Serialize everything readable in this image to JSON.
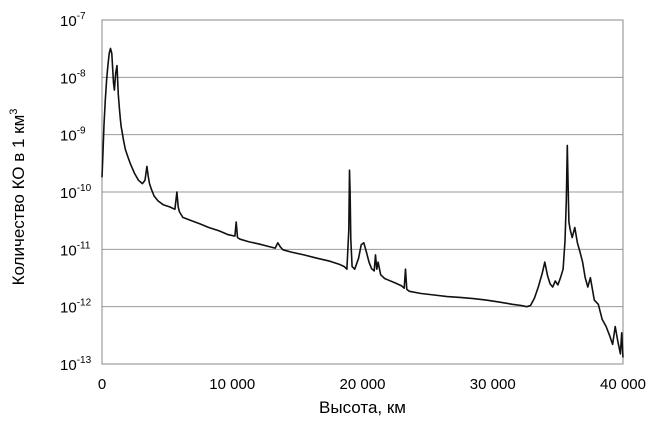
{
  "chart_data": {
    "type": "line",
    "xlabel": "Высота, км",
    "ylabel": "Количество КО в 1 км",
    "ylabel_superscript": "3",
    "xlim": [
      0,
      40000
    ],
    "ylim": [
      1e-13,
      1e-07
    ],
    "yscale": "log",
    "grid": "horizontal",
    "x_ticks": [
      {
        "value": 0,
        "label": "0"
      },
      {
        "value": 10000,
        "label": "10 000"
      },
      {
        "value": 20000,
        "label": "20 000"
      },
      {
        "value": 30000,
        "label": "30 000"
      },
      {
        "value": 40000,
        "label": "40 000"
      }
    ],
    "y_ticks": [
      {
        "value": 1e-07,
        "base": "10",
        "exp": "-7"
      },
      {
        "value": 1e-08,
        "base": "10",
        "exp": "-8"
      },
      {
        "value": 1e-09,
        "base": "10",
        "exp": "-9"
      },
      {
        "value": 1e-10,
        "base": "10",
        "exp": "-10"
      },
      {
        "value": 1e-11,
        "base": "10",
        "exp": "-11"
      },
      {
        "value": 1e-12,
        "base": "10",
        "exp": "-12"
      },
      {
        "value": 1e-13,
        "base": "10",
        "exp": "-13"
      }
    ],
    "series": [
      {
        "line_color": "#111111",
        "x": [
          0,
          80,
          150,
          250,
          350,
          450,
          550,
          650,
          750,
          820,
          880,
          950,
          1050,
          1150,
          1250,
          1330,
          1400,
          1470,
          1550,
          1650,
          1800,
          2000,
          2200,
          2500,
          2800,
          3100,
          3300,
          3450,
          3550,
          3650,
          3800,
          4000,
          4300,
          4700,
          5200,
          5600,
          5750,
          5850,
          5950,
          6200,
          6800,
          7500,
          8200,
          9000,
          9700,
          10200,
          10300,
          10400,
          10600,
          11300,
          12000,
          12800,
          13300,
          13500,
          13700,
          13900,
          14500,
          15500,
          16500,
          17500,
          18200,
          18600,
          18800,
          18950,
          19000,
          19050,
          19100,
          19200,
          19400,
          19700,
          19900,
          20100,
          20300,
          20500,
          20700,
          20900,
          21000,
          21100,
          21200,
          21400,
          21700,
          22000,
          22500,
          23000,
          23200,
          23300,
          23400,
          23600,
          24500,
          25500,
          26500,
          27500,
          28500,
          29500,
          30500,
          31500,
          32200,
          32600,
          32900,
          33200,
          33500,
          33800,
          34000,
          34200,
          34400,
          34600,
          34800,
          35000,
          35200,
          35400,
          35550,
          35650,
          35720,
          35780,
          35850,
          35950,
          36100,
          36300,
          36500,
          36700,
          36900,
          37100,
          37300,
          37500,
          37800,
          38100,
          38400,
          38700,
          39000,
          39200,
          39400,
          39600,
          39800,
          39900,
          40000
        ],
        "y": [
          1.8e-10,
          5e-10,
          1.5e-09,
          4e-09,
          9e-09,
          1.6e-08,
          2.6e-08,
          3.2e-08,
          2.6e-08,
          1.4e-08,
          8e-09,
          6e-09,
          1.2e-08,
          1.6e-08,
          5e-09,
          3e-09,
          2e-09,
          1.4e-09,
          1.1e-09,
          8e-10,
          5.5e-10,
          4e-10,
          3e-10,
          2.1e-10,
          1.6e-10,
          1.4e-10,
          1.6e-10,
          2.8e-10,
          1.9e-10,
          1.4e-10,
          1.1e-10,
          8.5e-11,
          7e-11,
          6e-11,
          5.5e-11,
          5e-11,
          1e-10,
          5.5e-11,
          4.5e-11,
          3.6e-11,
          3.2e-11,
          2.8e-11,
          2.4e-11,
          2.1e-11,
          1.8e-11,
          1.7e-11,
          3e-11,
          1.6e-11,
          1.5e-11,
          1.35e-11,
          1.25e-11,
          1.12e-11,
          1.05e-11,
          1.3e-11,
          1.1e-11,
          9.8e-12,
          9e-12,
          8e-12,
          7e-12,
          6.2e-12,
          5.5e-12,
          5e-12,
          4.5e-12,
          2.2e-11,
          2.4e-10,
          1e-10,
          1.5e-11,
          5e-12,
          4.5e-12,
          7e-12,
          1.2e-11,
          1.3e-11,
          9e-12,
          6e-12,
          4.6e-12,
          4.2e-12,
          8e-12,
          4.5e-12,
          6e-12,
          3.6e-12,
          3.1e-12,
          2.9e-12,
          2.6e-12,
          2.3e-12,
          2.1e-12,
          4.5e-12,
          2e-12,
          1.85e-12,
          1.7e-12,
          1.6e-12,
          1.5e-12,
          1.45e-12,
          1.38e-12,
          1.3e-12,
          1.2e-12,
          1.1e-12,
          1.05e-12,
          1e-12,
          1.05e-12,
          1.4e-12,
          2.2e-12,
          3.8e-12,
          6e-12,
          3.5e-12,
          2.5e-12,
          2.2e-12,
          2.8e-12,
          2.4e-12,
          3.2e-12,
          4.5e-12,
          1.4e-11,
          7e-11,
          6.5e-10,
          1.6e-10,
          3e-11,
          2.2e-11,
          1.6e-11,
          2.4e-11,
          1.3e-11,
          9e-12,
          6e-12,
          3.2e-12,
          2.2e-12,
          3.2e-12,
          1.3e-12,
          1.1e-12,
          6e-13,
          4.5e-13,
          3e-13,
          2.2e-13,
          4.5e-13,
          2.5e-13,
          1.5e-13,
          3.5e-13,
          1.3e-13
        ]
      }
    ]
  }
}
